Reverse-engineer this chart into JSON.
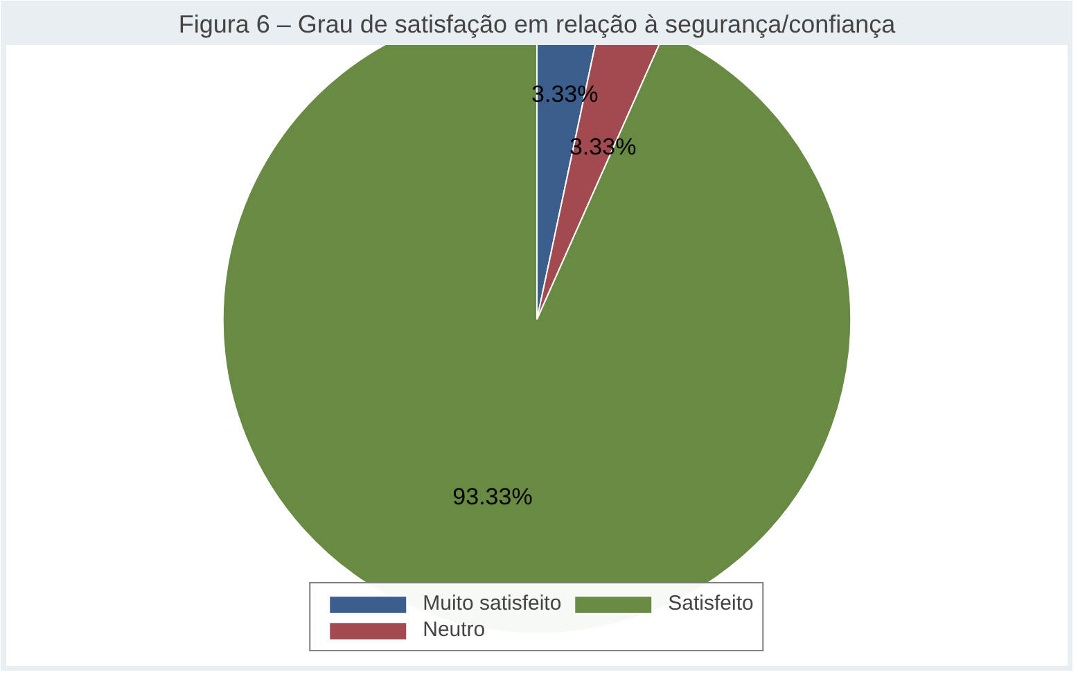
{
  "chart_data": {
    "type": "pie",
    "title": "Figura 6 – Grau de satisfação em relação à segurança/confiança",
    "categories": [
      "Muito satisfeito",
      "Neutro",
      "Satisfeito"
    ],
    "values": [
      3.33,
      3.33,
      93.33
    ],
    "colors": [
      "#3b5e8c",
      "#a34a50",
      "#688a42"
    ],
    "value_labels": [
      "3.33%",
      "3.33%",
      "93.33%"
    ],
    "legend": "bottom"
  }
}
